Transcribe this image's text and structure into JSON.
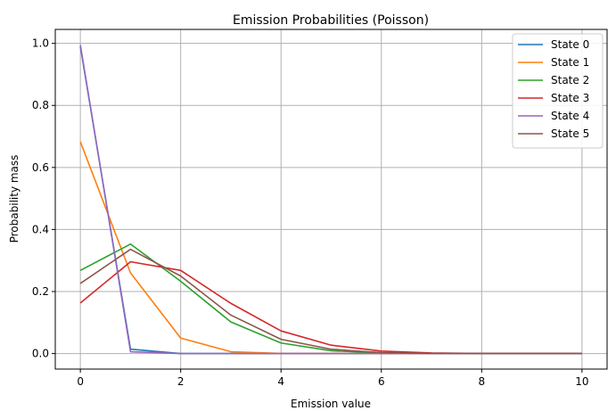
{
  "chart_data": {
    "type": "line",
    "title": "Emission Probabilities (Poisson)",
    "xlabel": "Emission value",
    "ylabel": "Probability mass",
    "xlim": [
      -0.5,
      10.5
    ],
    "ylim": [
      -0.05,
      1.045
    ],
    "xticks": [
      0,
      2,
      4,
      6,
      8,
      10
    ],
    "yticks": [
      0.0,
      0.2,
      0.4,
      0.6,
      0.8,
      1.0
    ],
    "xtick_labels": [
      "0",
      "2",
      "4",
      "6",
      "8",
      "10"
    ],
    "ytick_labels": [
      "0.0",
      "0.2",
      "0.4",
      "0.6",
      "0.8",
      "1.0"
    ],
    "grid": true,
    "legend_position": "top-right",
    "x": [
      0,
      1,
      2,
      3,
      4,
      5,
      6,
      7,
      8,
      9,
      10
    ],
    "series": [
      {
        "name": "State 0",
        "color": "#1f77b4",
        "values": [
          0.99,
          0.014,
          0.0001,
          0.0,
          0.0,
          0.0,
          0.0,
          0.0,
          0.0,
          0.0,
          0.0
        ]
      },
      {
        "name": "State 1",
        "color": "#ff7f0e",
        "values": [
          0.683,
          0.26,
          0.05,
          0.006,
          0.0006,
          0.0,
          0.0,
          0.0,
          0.0,
          0.0,
          0.0
        ]
      },
      {
        "name": "State 2",
        "color": "#2ca02c",
        "values": [
          0.268,
          0.353,
          0.233,
          0.102,
          0.034,
          0.009,
          0.002,
          0.0004,
          0.0,
          0.0,
          0.0
        ]
      },
      {
        "name": "State 3",
        "color": "#d62728",
        "values": [
          0.163,
          0.296,
          0.268,
          0.162,
          0.073,
          0.027,
          0.008,
          0.002,
          0.0005,
          0.0001,
          0.0
        ]
      },
      {
        "name": "State 4",
        "color": "#9467bd",
        "values": [
          0.995,
          0.006,
          0.0,
          0.0,
          0.0,
          0.0,
          0.0,
          0.0,
          0.0,
          0.0,
          0.0
        ]
      },
      {
        "name": "State 5",
        "color": "#8c564b",
        "values": [
          0.226,
          0.336,
          0.25,
          0.124,
          0.046,
          0.014,
          0.003,
          0.0006,
          0.0001,
          0.0,
          0.0
        ]
      }
    ]
  }
}
